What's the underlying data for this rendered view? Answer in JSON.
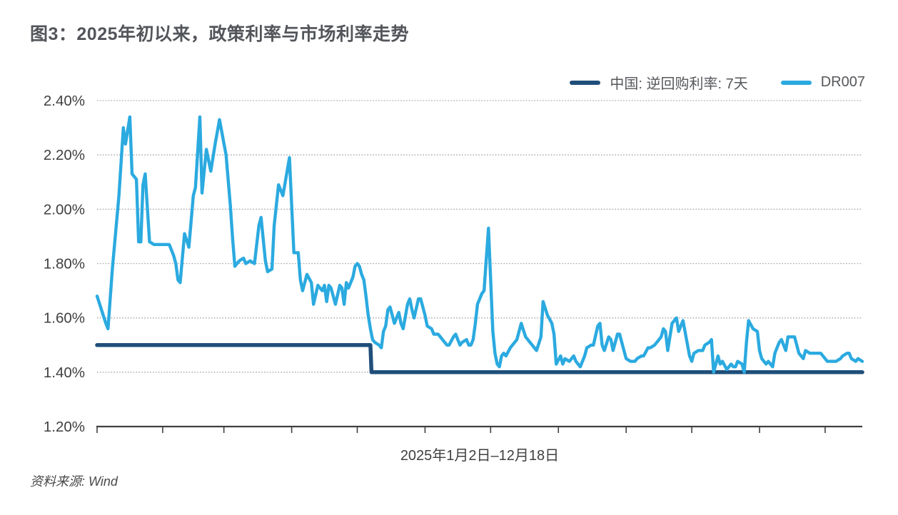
{
  "title": "图3：2025年初以来，政策利率与市场利率走势",
  "source": "资料来源: Wind",
  "colors": {
    "policy_line": "#1F4E79",
    "dr007_line": "#2BAAE0",
    "grid": "#A6A6A6",
    "axis": "#404040",
    "tick_label": "#404040"
  },
  "chart_data": {
    "type": "line",
    "title": "图3：2025年初以来，政策利率与市场利率走势",
    "xlabel": "2025年1月2日–12月18日",
    "ylabel": "",
    "x_unit": "days since 2025-01-02 (day 350 = 2025-12-18)",
    "x_end_day": 350,
    "month_tick_days": [
      0,
      30,
      58,
      89,
      119,
      150,
      180,
      211,
      242,
      272,
      303,
      333
    ],
    "ylim": [
      1.2,
      2.4
    ],
    "yticks": [
      1.2,
      1.4,
      1.6,
      1.8,
      2.0,
      2.2,
      2.4
    ],
    "ytick_labels": [
      "1.20%",
      "1.40%",
      "1.60%",
      "1.80%",
      "2.00%",
      "2.20%",
      "2.40%"
    ],
    "grid": "horizontal-dotted",
    "legend_position": "top-right",
    "series": [
      {
        "name": "中国: 逆回购利率: 7天",
        "color": "#1F4E79",
        "width": 5.5,
        "points": [
          [
            0,
            1.5
          ],
          [
            125,
            1.5
          ],
          [
            125.5,
            1.4
          ],
          [
            350,
            1.4
          ]
        ]
      },
      {
        "name": "DR007",
        "color": "#2BAAE0",
        "width": 4.4,
        "points": [
          [
            0,
            1.68
          ],
          [
            2,
            1.63
          ],
          [
            4,
            1.58
          ],
          [
            5,
            1.56
          ],
          [
            7,
            1.78
          ],
          [
            10,
            2.05
          ],
          [
            12,
            2.3
          ],
          [
            13,
            2.24
          ],
          [
            15,
            2.34
          ],
          [
            16,
            2.13
          ],
          [
            18,
            2.11
          ],
          [
            19,
            1.88
          ],
          [
            20,
            1.88
          ],
          [
            21,
            2.09
          ],
          [
            22,
            2.13
          ],
          [
            24,
            1.88
          ],
          [
            26,
            1.87
          ],
          [
            30,
            1.87
          ],
          [
            33,
            1.87
          ],
          [
            35,
            1.83
          ],
          [
            36,
            1.8
          ],
          [
            37,
            1.74
          ],
          [
            38,
            1.73
          ],
          [
            40,
            1.91
          ],
          [
            42,
            1.86
          ],
          [
            44,
            2.05
          ],
          [
            45,
            2.08
          ],
          [
            47,
            2.34
          ],
          [
            48,
            2.06
          ],
          [
            50,
            2.22
          ],
          [
            52,
            2.14
          ],
          [
            54,
            2.24
          ],
          [
            56,
            2.33
          ],
          [
            59,
            2.2
          ],
          [
            61,
            2.01
          ],
          [
            62,
            1.89
          ],
          [
            63,
            1.79
          ],
          [
            65,
            1.81
          ],
          [
            67,
            1.82
          ],
          [
            68,
            1.8
          ],
          [
            70,
            1.81
          ],
          [
            72,
            1.8
          ],
          [
            74,
            1.94
          ],
          [
            75,
            1.97
          ],
          [
            77,
            1.81
          ],
          [
            78,
            1.77
          ],
          [
            80,
            1.78
          ],
          [
            81,
            1.94
          ],
          [
            83,
            2.09
          ],
          [
            85,
            2.05
          ],
          [
            88,
            2.19
          ],
          [
            90,
            1.84
          ],
          [
            92,
            1.84
          ],
          [
            93,
            1.74
          ],
          [
            94,
            1.7
          ],
          [
            96,
            1.76
          ],
          [
            98,
            1.73
          ],
          [
            99,
            1.65
          ],
          [
            101,
            1.72
          ],
          [
            103,
            1.7
          ],
          [
            104,
            1.72
          ],
          [
            105,
            1.66
          ],
          [
            106,
            1.72
          ],
          [
            107,
            1.71
          ],
          [
            109,
            1.65
          ],
          [
            111,
            1.72
          ],
          [
            112,
            1.71
          ],
          [
            113,
            1.65
          ],
          [
            114,
            1.73
          ],
          [
            115,
            1.71
          ],
          [
            117,
            1.75
          ],
          [
            118,
            1.79
          ],
          [
            119,
            1.8
          ],
          [
            120,
            1.79
          ],
          [
            121,
            1.76
          ],
          [
            122,
            1.74
          ],
          [
            123,
            1.68
          ],
          [
            124,
            1.61
          ],
          [
            125,
            1.56
          ],
          [
            126,
            1.52
          ],
          [
            127,
            1.51
          ],
          [
            129,
            1.5
          ],
          [
            130,
            1.49
          ],
          [
            131,
            1.55
          ],
          [
            132,
            1.57
          ],
          [
            133,
            1.63
          ],
          [
            134,
            1.64
          ],
          [
            135,
            1.61
          ],
          [
            136,
            1.58
          ],
          [
            138,
            1.62
          ],
          [
            139,
            1.58
          ],
          [
            140,
            1.56
          ],
          [
            142,
            1.65
          ],
          [
            143,
            1.67
          ],
          [
            144,
            1.63
          ],
          [
            145,
            1.6
          ],
          [
            147,
            1.67
          ],
          [
            148,
            1.67
          ],
          [
            150,
            1.61
          ],
          [
            151,
            1.57
          ],
          [
            153,
            1.56
          ],
          [
            154,
            1.54
          ],
          [
            156,
            1.54
          ],
          [
            157,
            1.53
          ],
          [
            158,
            1.52
          ],
          [
            160,
            1.5
          ],
          [
            161,
            1.5
          ],
          [
            163,
            1.53
          ],
          [
            164,
            1.54
          ],
          [
            166,
            1.5
          ],
          [
            167,
            1.51
          ],
          [
            169,
            1.52
          ],
          [
            170,
            1.5
          ],
          [
            171,
            1.5
          ],
          [
            172,
            1.52
          ],
          [
            173,
            1.58
          ],
          [
            174,
            1.65
          ],
          [
            176,
            1.69
          ],
          [
            177,
            1.7
          ],
          [
            179,
            1.93
          ],
          [
            181,
            1.55
          ],
          [
            182,
            1.47
          ],
          [
            183,
            1.43
          ],
          [
            184,
            1.42
          ],
          [
            185,
            1.46
          ],
          [
            186,
            1.47
          ],
          [
            187,
            1.46
          ],
          [
            189,
            1.49
          ],
          [
            190,
            1.5
          ],
          [
            192,
            1.52
          ],
          [
            194,
            1.58
          ],
          [
            196,
            1.53
          ],
          [
            198,
            1.51
          ],
          [
            199,
            1.5
          ],
          [
            201,
            1.48
          ],
          [
            203,
            1.53
          ],
          [
            204,
            1.66
          ],
          [
            206,
            1.61
          ],
          [
            208,
            1.58
          ],
          [
            209,
            1.54
          ],
          [
            210,
            1.43
          ],
          [
            212,
            1.46
          ],
          [
            213,
            1.43
          ],
          [
            214,
            1.45
          ],
          [
            216,
            1.44
          ],
          [
            218,
            1.46
          ],
          [
            219,
            1.44
          ],
          [
            221,
            1.42
          ],
          [
            223,
            1.46
          ],
          [
            224,
            1.49
          ],
          [
            226,
            1.5
          ],
          [
            227,
            1.5
          ],
          [
            229,
            1.57
          ],
          [
            230,
            1.58
          ],
          [
            231,
            1.5
          ],
          [
            232,
            1.48
          ],
          [
            234,
            1.53
          ],
          [
            235,
            1.52
          ],
          [
            236,
            1.48
          ],
          [
            238,
            1.54
          ],
          [
            239,
            1.54
          ],
          [
            241,
            1.48
          ],
          [
            242,
            1.45
          ],
          [
            244,
            1.44
          ],
          [
            246,
            1.44
          ],
          [
            247,
            1.45
          ],
          [
            249,
            1.46
          ],
          [
            250,
            1.46
          ],
          [
            252,
            1.49
          ],
          [
            253,
            1.49
          ],
          [
            255,
            1.5
          ],
          [
            257,
            1.52
          ],
          [
            258,
            1.53
          ],
          [
            259,
            1.56
          ],
          [
            260,
            1.55
          ],
          [
            261,
            1.48
          ],
          [
            263,
            1.58
          ],
          [
            265,
            1.6
          ],
          [
            266,
            1.55
          ],
          [
            268,
            1.59
          ],
          [
            271,
            1.46
          ],
          [
            272,
            1.44
          ],
          [
            273,
            1.47
          ],
          [
            275,
            1.48
          ],
          [
            277,
            1.48
          ],
          [
            278,
            1.5
          ],
          [
            280,
            1.51
          ],
          [
            281,
            1.52
          ],
          [
            282,
            1.4
          ],
          [
            284,
            1.46
          ],
          [
            285,
            1.43
          ],
          [
            286,
            1.44
          ],
          [
            288,
            1.41
          ],
          [
            290,
            1.43
          ],
          [
            291,
            1.42
          ],
          [
            292,
            1.42
          ],
          [
            293,
            1.44
          ],
          [
            295,
            1.43
          ],
          [
            296,
            1.4
          ],
          [
            297,
            1.51
          ],
          [
            298,
            1.59
          ],
          [
            300,
            1.56
          ],
          [
            302,
            1.55
          ],
          [
            303,
            1.48
          ],
          [
            304,
            1.45
          ],
          [
            306,
            1.43
          ],
          [
            307,
            1.44
          ],
          [
            309,
            1.42
          ],
          [
            310,
            1.47
          ],
          [
            312,
            1.51
          ],
          [
            313,
            1.52
          ],
          [
            315,
            1.48
          ],
          [
            316,
            1.53
          ],
          [
            318,
            1.53
          ],
          [
            319,
            1.53
          ],
          [
            321,
            1.47
          ],
          [
            323,
            1.45
          ],
          [
            324,
            1.48
          ],
          [
            326,
            1.47
          ],
          [
            328,
            1.47
          ],
          [
            331,
            1.47
          ],
          [
            334,
            1.44
          ],
          [
            336,
            1.44
          ],
          [
            338,
            1.44
          ],
          [
            340,
            1.45
          ],
          [
            341,
            1.46
          ],
          [
            343,
            1.47
          ],
          [
            344,
            1.47
          ],
          [
            345,
            1.45
          ],
          [
            347,
            1.44
          ],
          [
            348,
            1.45
          ],
          [
            350,
            1.44
          ]
        ]
      }
    ]
  }
}
